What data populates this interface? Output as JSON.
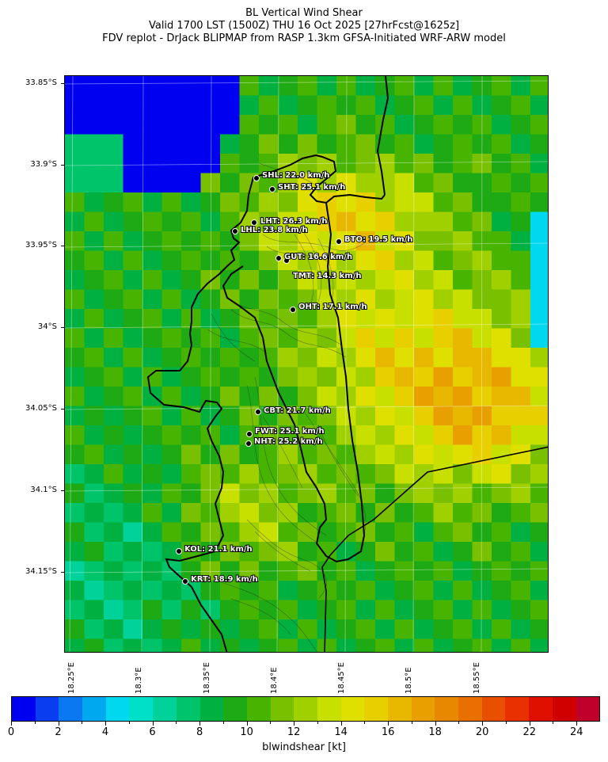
{
  "title": {
    "line1": "BL Vertical Wind Shear",
    "line2": "Valid 1700 LST (1500Z) THU 16 Oct 2025 [27hrFcst@1625z]",
    "line3": "FDV replot - DrJack BLIPMAP from RASP 1.3km GFSA-Initiated WRF-ARW model"
  },
  "lat_labels": [
    "33.85°S",
    "33.9°S",
    "33.95°S",
    "34°S",
    "34.05°S",
    "34.1°S",
    "34.15°S"
  ],
  "lon_labels": [
    "18.25°E",
    "18.3°E",
    "18.35°E",
    "18.4°E",
    "18.45°E",
    "18.5°E",
    "18.55°E"
  ],
  "stations": [
    {
      "code": "SHL",
      "label": "SHL: 22.0 km/h"
    },
    {
      "code": "SHT",
      "label": "SHT: 25.1 km/h"
    },
    {
      "code": "LHT",
      "label": "LHT: 26.3 km/h"
    },
    {
      "code": "LHL",
      "label": "LHL: 23.8 km/h"
    },
    {
      "code": "BTO",
      "label": "BTO: 19.5 km/h"
    },
    {
      "code": "GUT",
      "label": "GUT: 16.6 km/h"
    },
    {
      "code": "TMT",
      "label": "TMT: 14.3 km/h"
    },
    {
      "code": "OHT",
      "label": "OHT: 17.1 km/h"
    },
    {
      "code": "CBT",
      "label": "CBT: 21.7 km/h"
    },
    {
      "code": "FWT",
      "label": "FWT: 25.1 km/h"
    },
    {
      "code": "NHT",
      "label": "NHT: 25.2 km/h"
    },
    {
      "code": "KOL",
      "label": "KOL: 21.1 km/h"
    },
    {
      "code": "KRT",
      "label": "KRT: 18.9 km/h"
    }
  ],
  "colorbar": {
    "title": "blwindshear [kt]",
    "tick_labels": [
      "0",
      "2",
      "4",
      "6",
      "8",
      "10",
      "12",
      "14",
      "16",
      "18",
      "20",
      "22",
      "24"
    ],
    "colors": [
      "#0000f0",
      "#0a3cf0",
      "#0a78f0",
      "#00a8f0",
      "#00d8f0",
      "#00e0c8",
      "#00d29a",
      "#00c46a",
      "#00b040",
      "#1eaa14",
      "#46b400",
      "#78c000",
      "#a0d000",
      "#c8e000",
      "#e0e000",
      "#e8d000",
      "#e8b800",
      "#e8a000",
      "#e88800",
      "#e87000",
      "#e85000",
      "#e83000",
      "#e01000",
      "#d00000",
      "#c0002a"
    ]
  }
}
